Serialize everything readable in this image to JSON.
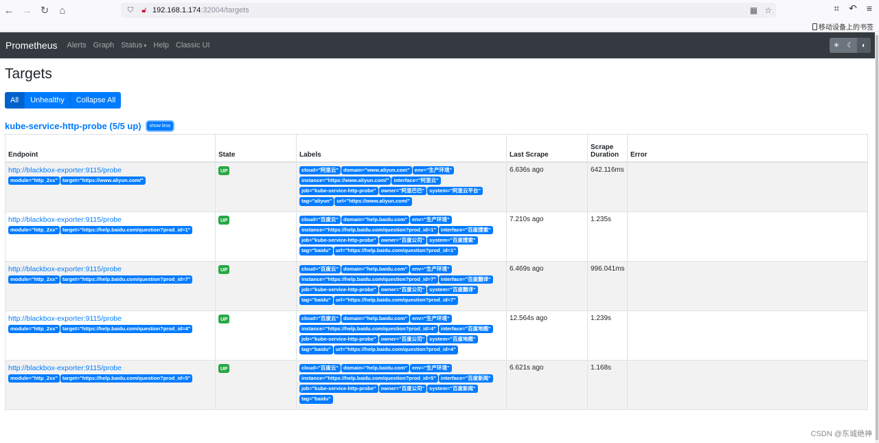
{
  "browser": {
    "url_host": "192.168.1.174",
    "url_path": ":32004/targets",
    "bookmark_label": "移动设备上的书签"
  },
  "navbar": {
    "brand": "Prometheus",
    "links": [
      "Alerts",
      "Graph",
      "Status",
      "Help",
      "Classic UI"
    ]
  },
  "page": {
    "title": "Targets",
    "filters": [
      "All",
      "Unhealthy",
      "Collapse All"
    ],
    "pool_title": "kube-service-http-probe (5/5 up)",
    "show_less": "show less"
  },
  "table": {
    "headers": [
      "Endpoint",
      "State",
      "Labels",
      "Last Scrape",
      "Scrape\nDuration",
      "Error"
    ],
    "rows": [
      {
        "endpoint": "http://blackbox-exporter:9115/probe",
        "params": [
          "module=\"http_2xx\"",
          "target=\"https://www.aliyun.com/\""
        ],
        "state": "UP",
        "labels": [
          "cloud=\"阿里云\"",
          "domain=\"www.aliyun.com\"",
          "env=\"生产环境\"",
          "instance=\"https://www.aliyun.com/\"",
          "interface=\"阿里云\"",
          "job=\"kube-service-http-probe\"",
          "owner=\"阿里巴巴\"",
          "system=\"阿里云平台\"",
          "tag=\"aliyun\"",
          "url=\"https://www.aliyun.com/\""
        ],
        "last_scrape": "6.636s ago",
        "duration": "642.116ms",
        "error": ""
      },
      {
        "endpoint": "http://blackbox-exporter:9115/probe",
        "params": [
          "module=\"http_2xx\"",
          "target=\"https://help.baidu.com/question?prod_id=1\""
        ],
        "state": "UP",
        "labels": [
          "cloud=\"百度云\"",
          "domain=\"help.baidu.com\"",
          "env=\"生产环境\"",
          "instance=\"https://help.baidu.com/question?prod_id=1\"",
          "interface=\"百度搜索\"",
          "job=\"kube-service-http-probe\"",
          "owner=\"百度公司\"",
          "system=\"百度搜索\"",
          "tag=\"baidu\"",
          "url=\"https://help.baidu.com/question?prod_id=1\""
        ],
        "last_scrape": "7.210s ago",
        "duration": "1.235s",
        "error": ""
      },
      {
        "endpoint": "http://blackbox-exporter:9115/probe",
        "params": [
          "module=\"http_2xx\"",
          "target=\"https://help.baidu.com/question?prod_id=7\""
        ],
        "state": "UP",
        "labels": [
          "cloud=\"百度云\"",
          "domain=\"help.baidu.com\"",
          "env=\"生产环境\"",
          "instance=\"https://help.baidu.com/question?prod_id=7\"",
          "interface=\"百度翻译\"",
          "job=\"kube-service-http-probe\"",
          "owner=\"百度公司\"",
          "system=\"百度翻译\"",
          "tag=\"baidu\"",
          "url=\"https://help.baidu.com/question?prod_id=7\""
        ],
        "last_scrape": "6.469s ago",
        "duration": "996.041ms",
        "error": ""
      },
      {
        "endpoint": "http://blackbox-exporter:9115/probe",
        "params": [
          "module=\"http_2xx\"",
          "target=\"https://help.baidu.com/question?prod_id=4\""
        ],
        "state": "UP",
        "labels": [
          "cloud=\"百度云\"",
          "domain=\"help.baidu.com\"",
          "env=\"生产环境\"",
          "instance=\"https://help.baidu.com/question?prod_id=4\"",
          "interface=\"百度地图\"",
          "job=\"kube-service-http-probe\"",
          "owner=\"百度公司\"",
          "system=\"百度地图\"",
          "tag=\"baidu\"",
          "url=\"https://help.baidu.com/question?prod_id=4\""
        ],
        "last_scrape": "12.564s ago",
        "duration": "1.239s",
        "error": ""
      },
      {
        "endpoint": "http://blackbox-exporter:9115/probe",
        "params": [
          "module=\"http_2xx\"",
          "target=\"https://help.baidu.com/question?prod_id=5\""
        ],
        "state": "UP",
        "labels": [
          "cloud=\"百度云\"",
          "domain=\"help.baidu.com\"",
          "env=\"生产环境\"",
          "instance=\"https://help.baidu.com/question?prod_id=5\"",
          "interface=\"百度新闻\"",
          "job=\"kube-service-http-probe\"",
          "owner=\"百度公司\"",
          "system=\"百度新闻\"",
          "tag=\"baidu\""
        ],
        "last_scrape": "6.621s ago",
        "duration": "1.168s",
        "error": ""
      }
    ]
  },
  "watermark": "CSDN @东城绝神",
  "colors": {
    "accent": "#007bff",
    "up": "#28a745",
    "navbar": "#343a40"
  }
}
